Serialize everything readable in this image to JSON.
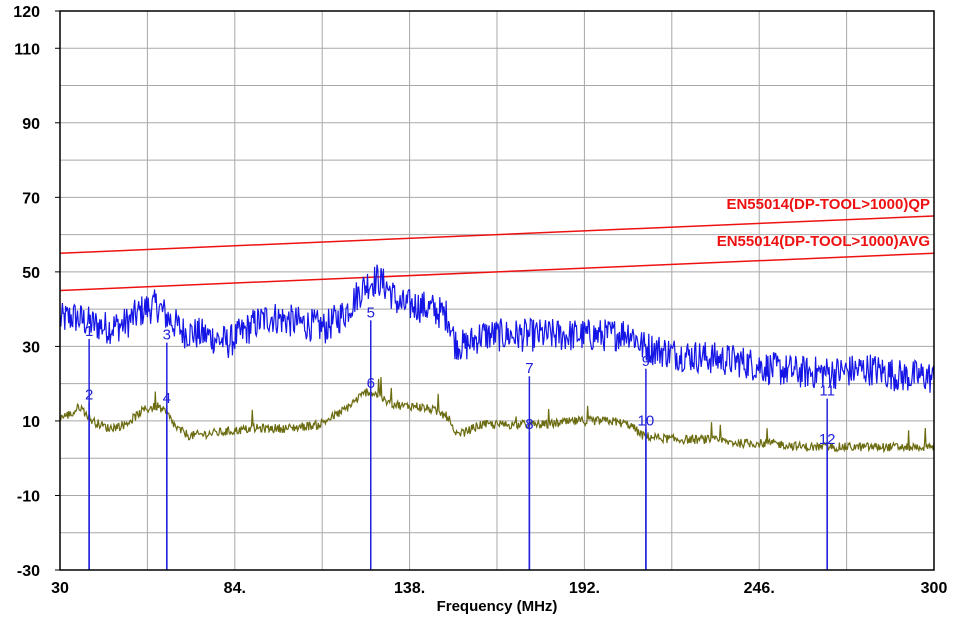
{
  "chart_data": {
    "type": "line",
    "xlabel": "Frequency (MHz)",
    "ylabel": "",
    "xlim": [
      30,
      300
    ],
    "ylim": [
      -30,
      120
    ],
    "x_ticks": [
      30,
      84,
      138,
      192,
      246,
      300
    ],
    "x_tick_labels": [
      "30",
      "84.",
      "138.",
      "192.",
      "246.",
      "300"
    ],
    "y_ticks": [
      -30,
      -10,
      10,
      30,
      50,
      70,
      90,
      110,
      120
    ],
    "y_tick_labels": [
      "-30",
      "-10",
      "10",
      "30",
      "50",
      "70",
      "90",
      "110",
      "120"
    ],
    "grid": true,
    "limit_lines": [
      {
        "name": "EN55014(DP-TOOL>1000)QP",
        "color": "#ee1111",
        "x": [
          30,
          300
        ],
        "y": [
          55,
          65
        ]
      },
      {
        "name": "EN55014(DP-TOOL>1000)AVG",
        "color": "#ee1111",
        "x": [
          30,
          300
        ],
        "y": [
          45,
          55
        ]
      }
    ],
    "series": [
      {
        "color": "#1515e6",
        "noise": 4.5,
        "x": [
          30,
          34,
          40,
          45,
          50,
          56,
          60,
          63,
          68,
          75,
          82,
          90,
          95,
          100,
          106,
          112,
          118,
          122,
          125,
          128,
          131,
          135,
          140,
          145,
          150,
          152,
          155,
          160,
          170,
          180,
          190,
          200,
          206,
          210,
          220,
          230,
          240,
          250,
          260,
          270,
          280,
          290,
          298,
          300
        ],
        "y": [
          37,
          38,
          36,
          35,
          36,
          40,
          41,
          38,
          34,
          33,
          31,
          36,
          38,
          37,
          36,
          35,
          39,
          44,
          47,
          48,
          46,
          41,
          41,
          40,
          38,
          31,
          30,
          33,
          33,
          33,
          33,
          33,
          34,
          30,
          28,
          27,
          26,
          24,
          23,
          23,
          24,
          22,
          22,
          21
        ]
      },
      {
        "color": "#6b6b10",
        "noise": 1.2,
        "x": [
          30,
          34,
          36,
          40,
          45,
          50,
          56,
          60,
          63,
          66,
          70,
          80,
          90,
          100,
          110,
          118,
          122,
          125,
          128,
          131,
          136,
          140,
          145,
          150,
          152,
          155,
          160,
          170,
          180,
          190,
          200,
          206,
          210,
          220,
          230,
          240,
          250,
          260,
          270,
          280,
          290,
          300
        ],
        "y": [
          11,
          12,
          14,
          10,
          8,
          9,
          13,
          14,
          12,
          8,
          6,
          7,
          8,
          8,
          9,
          13,
          16,
          18,
          17,
          15,
          14,
          14,
          13,
          11,
          6,
          7,
          9,
          9,
          9,
          10,
          10,
          9,
          6,
          5,
          5,
          4,
          4,
          3,
          3,
          3,
          3,
          3
        ]
      }
    ],
    "markers": [
      {
        "label": "1",
        "x": 39,
        "y": 32
      },
      {
        "label": "2",
        "x": 39,
        "y": 15
      },
      {
        "label": "3",
        "x": 63,
        "y": 31
      },
      {
        "label": "4",
        "x": 63,
        "y": 14
      },
      {
        "label": "5",
        "x": 126,
        "y": 37
      },
      {
        "label": "6",
        "x": 126,
        "y": 18
      },
      {
        "label": "7",
        "x": 175,
        "y": 22
      },
      {
        "label": "8",
        "x": 175,
        "y": 7
      },
      {
        "label": "9",
        "x": 211,
        "y": 24
      },
      {
        "label": "10",
        "x": 211,
        "y": 8
      },
      {
        "label": "11",
        "x": 267,
        "y": 16
      },
      {
        "label": "12",
        "x": 267,
        "y": 3
      }
    ],
    "colors": {
      "grid": "#a8a8a8",
      "axis": "#000000",
      "marker": "#2222dd"
    }
  }
}
